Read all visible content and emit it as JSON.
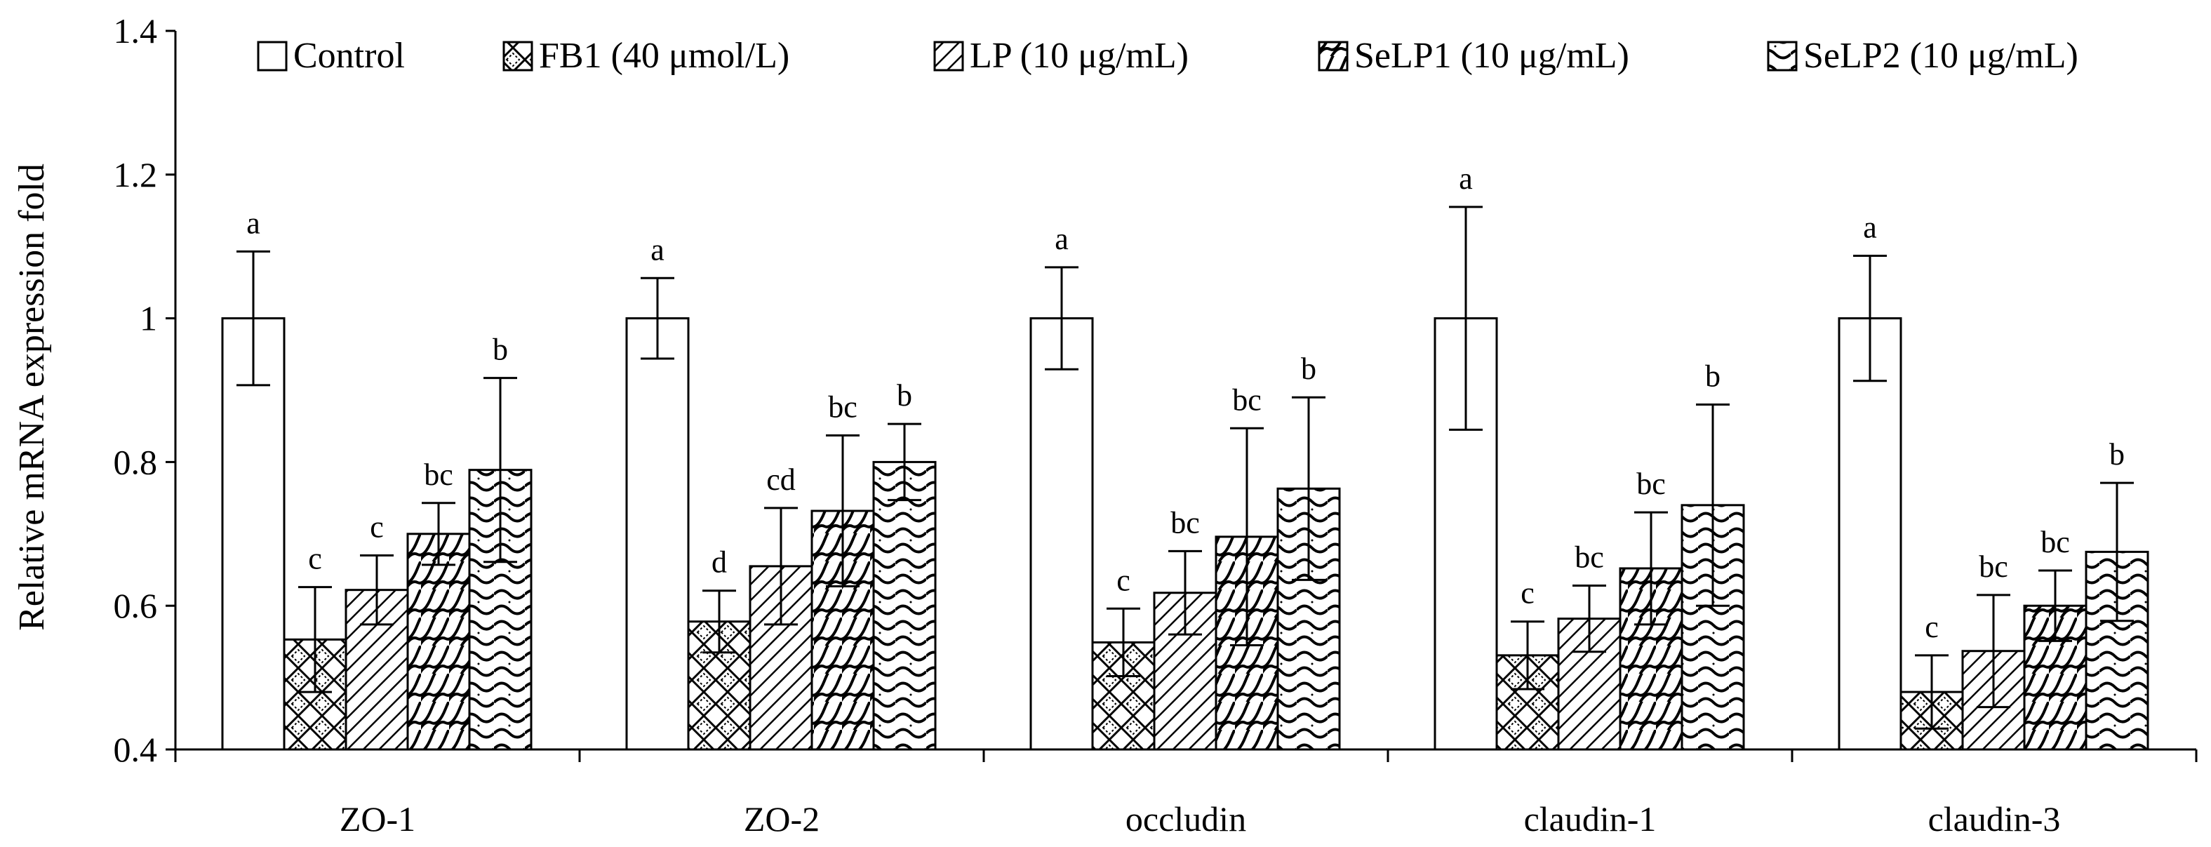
{
  "chart_data": {
    "type": "bar",
    "title": "",
    "xlabel": "",
    "ylabel": "Relative mRNA expression fold",
    "ylim": [
      0.4,
      1.4
    ],
    "yticks": [
      "0.4",
      "0.6",
      "0.8",
      "1",
      "1.2",
      "1.4"
    ],
    "grid": false,
    "legend_position": "top",
    "categories": [
      "ZO-1",
      "ZO-2",
      "occludin",
      "claudin-1",
      "claudin-3"
    ],
    "series": [
      {
        "name": "Control",
        "pattern": "white",
        "values": [
          1.0,
          1.0,
          1.0,
          1.0,
          1.0
        ],
        "errors": [
          0.093,
          0.056,
          0.071,
          0.155,
          0.087
        ],
        "labels": [
          "a",
          "a",
          "a",
          "a",
          "a"
        ]
      },
      {
        "name": "FB1 (40 μmol/L)",
        "pattern": "crosshatch",
        "values": [
          0.553,
          0.578,
          0.549,
          0.531,
          0.48
        ],
        "errors": [
          0.073,
          0.043,
          0.047,
          0.047,
          0.051
        ],
        "labels": [
          "c",
          "d",
          "c",
          "c",
          "c"
        ]
      },
      {
        "name": "LP (10 μg/mL)",
        "pattern": "diagonal",
        "values": [
          0.622,
          0.655,
          0.618,
          0.582,
          0.537
        ],
        "errors": [
          0.048,
          0.081,
          0.058,
          0.046,
          0.078
        ],
        "labels": [
          "c",
          "cd",
          "bc",
          "bc",
          "bc"
        ]
      },
      {
        "name": "SeLP1 (10 μg/mL)",
        "pattern": "wave",
        "values": [
          0.7,
          0.732,
          0.696,
          0.652,
          0.6
        ],
        "errors": [
          0.043,
          0.105,
          0.151,
          0.078,
          0.049
        ],
        "labels": [
          "bc",
          "bc",
          "bc",
          "bc",
          "bc"
        ]
      },
      {
        "name": "SeLP2 (10 μg/mL)",
        "pattern": "scale",
        "values": [
          0.789,
          0.8,
          0.763,
          0.74,
          0.675
        ],
        "errors": [
          0.128,
          0.053,
          0.127,
          0.14,
          0.096
        ],
        "labels": [
          "b",
          "b",
          "b",
          "b",
          "b"
        ]
      }
    ]
  }
}
